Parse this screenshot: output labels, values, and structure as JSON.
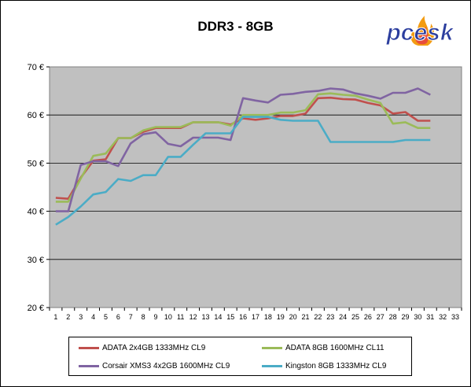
{
  "title": "DDR3 - 8GB",
  "logo_text": "pcesk",
  "chart_data": {
    "type": "line",
    "title": "DDR3 - 8GB",
    "xlabel": "",
    "ylabel": "",
    "x": [
      1,
      2,
      3,
      4,
      5,
      6,
      7,
      8,
      9,
      10,
      11,
      12,
      13,
      14,
      15,
      16,
      17,
      18,
      19,
      20,
      21,
      22,
      23,
      24,
      25,
      26,
      27,
      28,
      29,
      30,
      31
    ],
    "x_ticks": [
      "1",
      "2",
      "3",
      "4",
      "5",
      "6",
      "7",
      "8",
      "9",
      "10",
      "11",
      "12",
      "13",
      "14",
      "15",
      "16",
      "17",
      "18",
      "19",
      "20",
      "21",
      "22",
      "23",
      "24",
      "25",
      "26",
      "27",
      "28",
      "29",
      "30",
      "31",
      "32",
      "33"
    ],
    "y_ticks": [
      "20 €",
      "30 €",
      "40 €",
      "50 €",
      "60 €",
      "70 €"
    ],
    "ylim": [
      20,
      70
    ],
    "grid": true,
    "legend_position": "bottom",
    "series": [
      {
        "name": "ADATA 2x4GB 1333MHz CL9",
        "color": "#c0504d",
        "values": [
          42.8,
          42.6,
          47.0,
          50.5,
          50.8,
          55.2,
          55.2,
          56.5,
          57.3,
          57.3,
          57.3,
          58.5,
          58.5,
          58.5,
          58.0,
          59.3,
          59.0,
          59.3,
          59.8,
          59.8,
          60.3,
          63.5,
          63.6,
          63.3,
          63.2,
          62.5,
          62.0,
          60.3,
          60.6,
          58.8,
          58.8
        ]
      },
      {
        "name": "ADATA 8GB 1600MHz CL11",
        "color": "#9bbb59",
        "values": [
          42.0,
          42.0,
          46.8,
          51.5,
          52.0,
          55.2,
          55.2,
          56.8,
          57.5,
          57.5,
          57.5,
          58.5,
          58.5,
          58.5,
          57.8,
          60.0,
          60.0,
          60.0,
          60.5,
          60.5,
          61.0,
          64.3,
          64.5,
          64.2,
          64.0,
          63.2,
          62.5,
          58.2,
          58.5,
          57.3,
          57.3
        ]
      },
      {
        "name": "Corsair XMS3 4x2GB 1600MHz CL9",
        "color": "#8064a2",
        "values": [
          40.0,
          40.0,
          49.6,
          50.4,
          50.4,
          49.4,
          54.1,
          56.0,
          56.4,
          54.0,
          53.5,
          55.3,
          55.3,
          55.3,
          54.8,
          63.5,
          63.0,
          62.6,
          64.2,
          64.4,
          64.8,
          65.0,
          65.5,
          65.3,
          64.5,
          64.0,
          63.4,
          64.6,
          64.6,
          65.5,
          64.2
        ]
      },
      {
        "name": "Kingston 8GB 1333MHz CL9",
        "color": "#4bacc6",
        "values": [
          37.2,
          38.8,
          41.0,
          43.5,
          44.0,
          46.7,
          46.3,
          47.5,
          47.5,
          51.3,
          51.3,
          53.8,
          56.2,
          56.2,
          56.2,
          59.6,
          59.6,
          59.6,
          59.0,
          58.8,
          58.8,
          58.8,
          54.4,
          54.4,
          54.4,
          54.4,
          54.4,
          54.4,
          54.8,
          54.8,
          54.8
        ]
      }
    ]
  }
}
